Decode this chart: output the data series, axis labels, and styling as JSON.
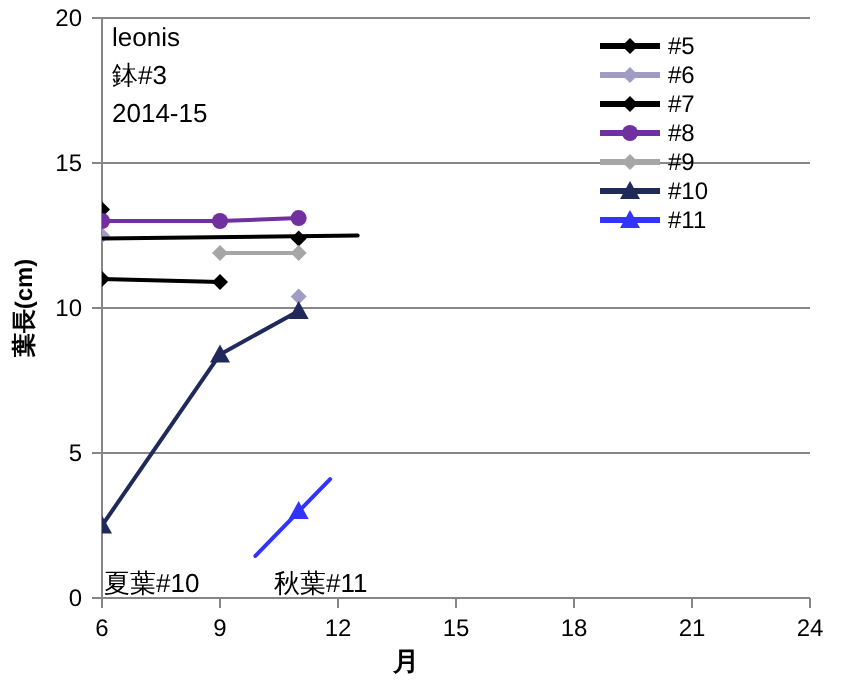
{
  "chart_data": {
    "type": "line",
    "xlabel": "月",
    "ylabel": "葉長(cm)",
    "x": [
      6,
      9,
      11
    ],
    "xlim": [
      6,
      24
    ],
    "xticks": [
      6,
      9,
      12,
      15,
      18,
      21,
      24
    ],
    "ylim": [
      0,
      20
    ],
    "yticks": [
      0,
      5,
      10,
      15,
      20
    ],
    "grid": "y",
    "legend": "top right",
    "annotations": [
      "leonis",
      "鉢#3",
      "2014-15",
      "夏葉#10",
      "秋葉#11"
    ],
    "series": [
      {
        "name": "#5",
        "marker": "diamond",
        "color": "#000000",
        "values": [
          11.0,
          10.9,
          null
        ]
      },
      {
        "name": "#6",
        "type": "scatter",
        "marker": "diamond",
        "color": "#a09cc4",
        "values": [
          12.5,
          null,
          10.4
        ]
      },
      {
        "name": "#7",
        "type": "scatter",
        "marker": "diamond",
        "color": "#000000",
        "values": [
          13.4,
          null,
          12.4
        ]
      },
      {
        "name": "#8",
        "marker": "circle",
        "color": "#7030a0",
        "values": [
          13.0,
          13.0,
          13.1
        ]
      },
      {
        "name": "#9",
        "marker": "diamond",
        "color": "#a6a6a6",
        "values": [
          null,
          11.9,
          11.9
        ]
      },
      {
        "name": "#10",
        "marker": "triangle",
        "color": "#1f2a5a",
        "values": [
          2.5,
          8.4,
          9.9
        ]
      },
      {
        "name": "#11",
        "type": "scatter",
        "marker": "triangle",
        "color": "#3333ff",
        "values": [
          null,
          null,
          3.0
        ]
      },
      {
        "type": "line",
        "marker": "none",
        "color": "#000000",
        "x": [
          6,
          12.5
        ],
        "values": [
          12.4,
          12.5
        ]
      },
      {
        "type": "line",
        "marker": "none",
        "color": "#3333ff",
        "x": [
          9.9,
          11.8
        ],
        "values": [
          1.45,
          4.1
        ]
      }
    ]
  }
}
